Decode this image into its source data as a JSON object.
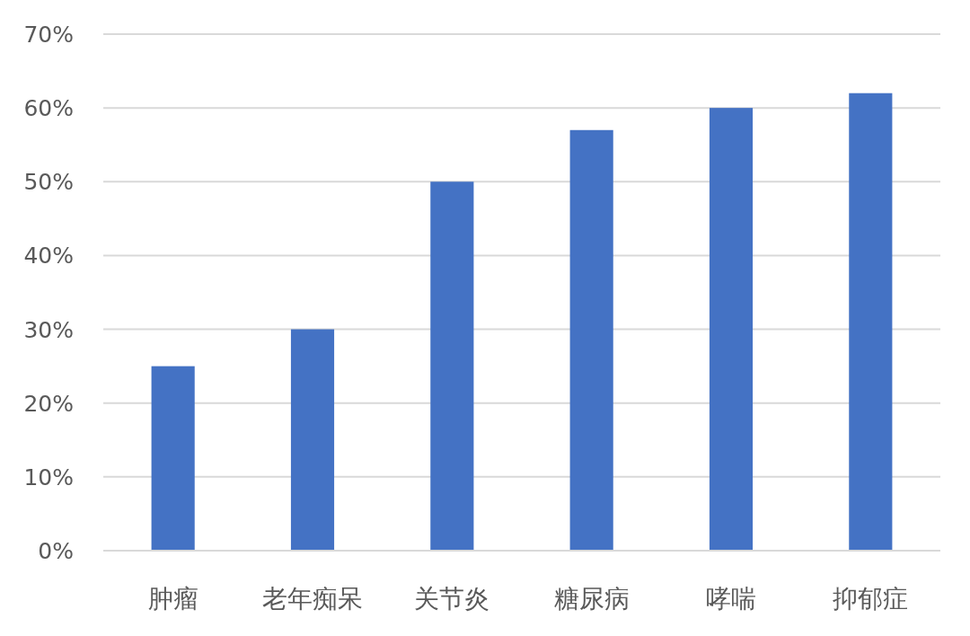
{
  "chart_data": {
    "type": "bar",
    "categories": [
      "肿瘤",
      "老年痴呆",
      "关节炎",
      "糖尿病",
      "哮喘",
      "抑郁症"
    ],
    "values": [
      25,
      30,
      50,
      57,
      60,
      62
    ],
    "color": "#4472c4",
    "ylim": [
      0,
      70
    ],
    "yticks": [
      {
        "value": 0,
        "label": "0%"
      },
      {
        "value": 10,
        "label": "10%"
      },
      {
        "value": 20,
        "label": "20%"
      },
      {
        "value": 30,
        "label": "30%"
      },
      {
        "value": 40,
        "label": "40%"
      },
      {
        "value": 50,
        "label": "50%"
      },
      {
        "value": 60,
        "label": "60%"
      },
      {
        "value": 70,
        "label": "70%"
      }
    ],
    "grid": "y"
  }
}
